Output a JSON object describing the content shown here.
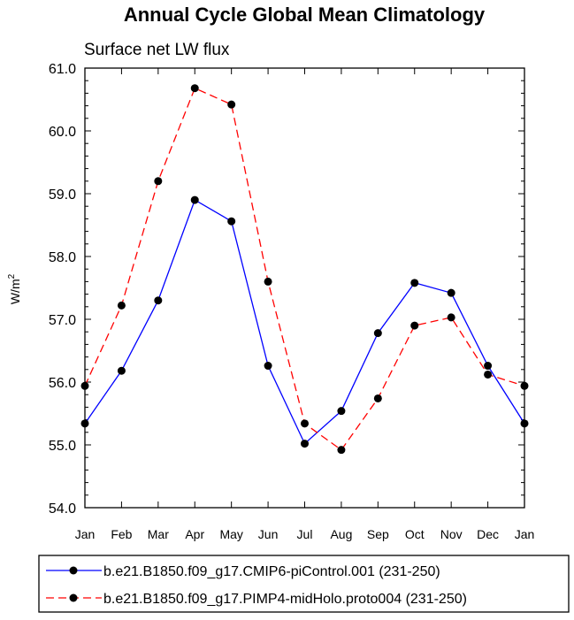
{
  "chart_data": {
    "type": "line",
    "title": "Annual Cycle Global Mean Climatology",
    "subtitle": "Surface net LW flux",
    "ylabel_main": "W/m",
    "ylabel_sup": "2",
    "xlabel": "",
    "ylim": [
      54.0,
      61.0
    ],
    "yticks": [
      "54.0",
      "55.0",
      "56.0",
      "57.0",
      "58.0",
      "59.0",
      "60.0",
      "61.0"
    ],
    "categories": [
      "Jan",
      "Feb",
      "Mar",
      "Apr",
      "May",
      "Jun",
      "Jul",
      "Aug",
      "Sep",
      "Oct",
      "Nov",
      "Dec",
      "Jan"
    ],
    "series": [
      {
        "name": "b.e21.B1850.f09_g17.CMIP6-piControl.001 (231-250)",
        "color": "#0000ff",
        "dash": "solid",
        "values": [
          55.34,
          56.18,
          57.3,
          58.9,
          58.56,
          56.26,
          55.02,
          55.54,
          56.78,
          57.58,
          57.42,
          56.26,
          55.34
        ]
      },
      {
        "name": "b.e21.B1850.f09_g17.PIMP4-midHolo.proto004 (231-250)",
        "color": "#ff0000",
        "dash": "dashed",
        "values": [
          55.94,
          57.22,
          59.2,
          60.68,
          60.42,
          57.6,
          55.34,
          54.92,
          55.74,
          56.9,
          57.03,
          56.12,
          55.94
        ]
      }
    ],
    "legend_position": "bottom"
  }
}
